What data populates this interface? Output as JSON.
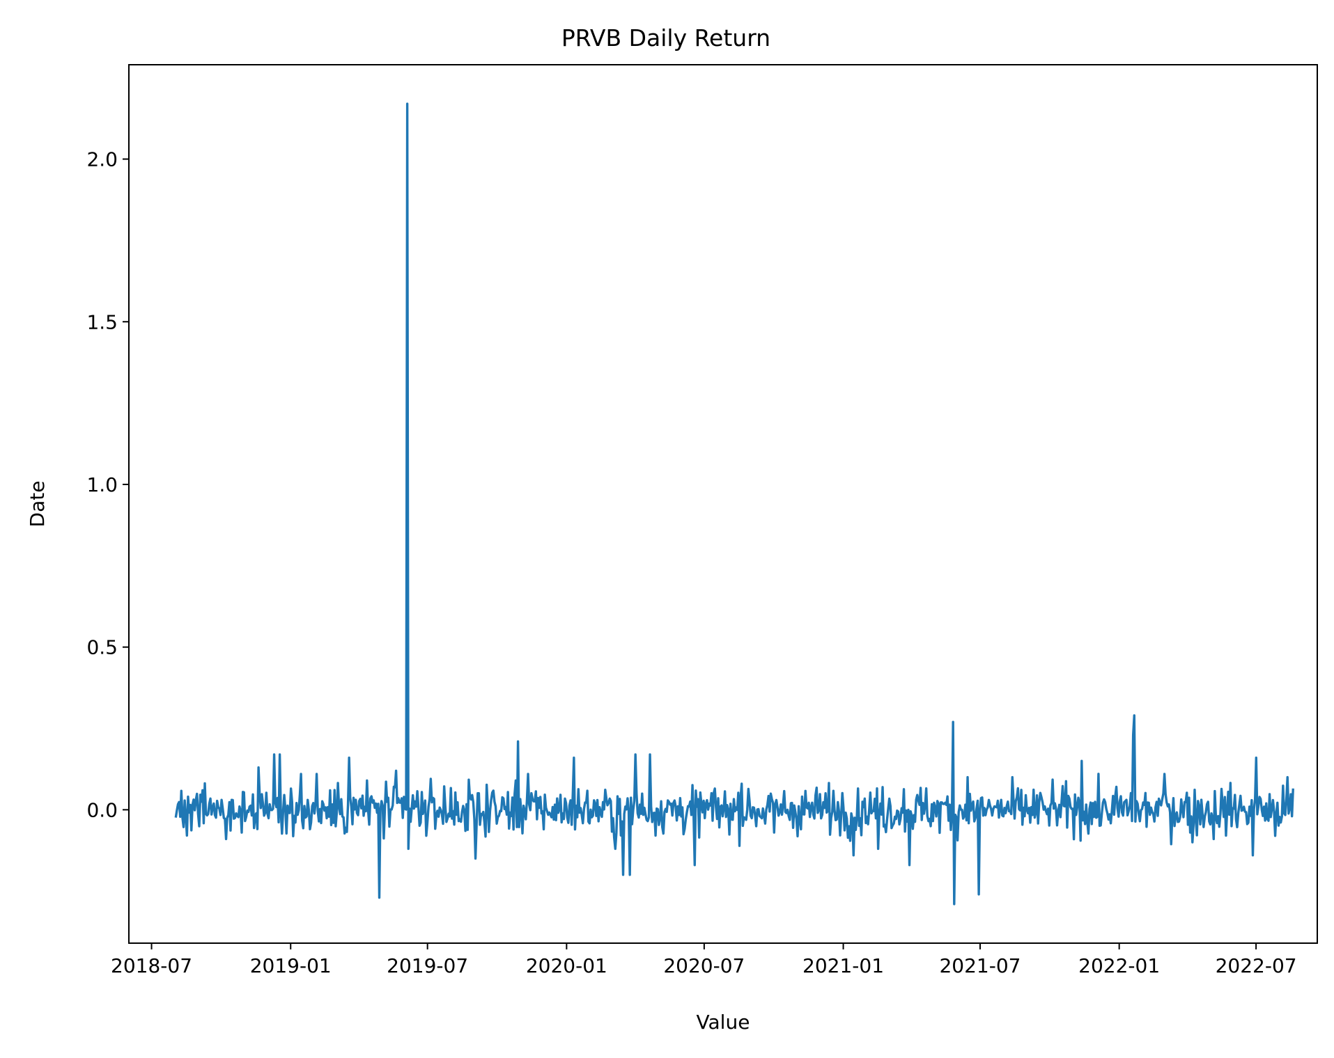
{
  "chart_data": {
    "type": "line",
    "title": "PRVB Daily Return",
    "xlabel": "Value",
    "ylabel": "Date",
    "x_type": "date",
    "xlim": [
      "2018-06-01",
      "2022-09-20"
    ],
    "ylim": [
      -0.41,
      2.29
    ],
    "x_ticks": [
      "2018-07",
      "2019-01",
      "2019-07",
      "2020-01",
      "2020-07",
      "2021-01",
      "2021-07",
      "2022-01",
      "2022-07"
    ],
    "y_ticks": [
      0.0,
      0.5,
      1.0,
      1.5,
      2.0
    ],
    "y_tick_labels": [
      "0.0",
      "0.5",
      "1.0",
      "1.5",
      "2.0"
    ],
    "grid": false,
    "line_color": "#1f77b4",
    "series": [
      {
        "name": "PRVB Daily Return",
        "x_start": "2018-08-02",
        "x_end": "2022-08-19",
        "points": 1000,
        "baseline_noise_sd": 0.035,
        "spikes": [
          {
            "x": "2018-09-06",
            "y": 0.06
          },
          {
            "x": "2018-10-08",
            "y": -0.09
          },
          {
            "x": "2018-11-20",
            "y": 0.13
          },
          {
            "x": "2018-12-10",
            "y": 0.17
          },
          {
            "x": "2018-12-18",
            "y": 0.17
          },
          {
            "x": "2019-01-15",
            "y": 0.11
          },
          {
            "x": "2019-02-04",
            "y": 0.11
          },
          {
            "x": "2019-03-20",
            "y": 0.16
          },
          {
            "x": "2019-04-12",
            "y": 0.09
          },
          {
            "x": "2019-04-28",
            "y": -0.27
          },
          {
            "x": "2019-05-20",
            "y": 0.12
          },
          {
            "x": "2019-06-04",
            "y": 2.17
          },
          {
            "x": "2019-06-06",
            "y": -0.12
          },
          {
            "x": "2019-09-03",
            "y": -0.15
          },
          {
            "x": "2019-09-23",
            "y": 0.03
          },
          {
            "x": "2019-10-28",
            "y": 0.21
          },
          {
            "x": "2019-11-11",
            "y": 0.11
          },
          {
            "x": "2020-01-10",
            "y": 0.16
          },
          {
            "x": "2020-03-06",
            "y": -0.12
          },
          {
            "x": "2020-03-16",
            "y": -0.2
          },
          {
            "x": "2020-03-24",
            "y": -0.2
          },
          {
            "x": "2020-04-01",
            "y": 0.17
          },
          {
            "x": "2020-04-20",
            "y": 0.17
          },
          {
            "x": "2020-06-19",
            "y": -0.17
          },
          {
            "x": "2020-08-20",
            "y": 0.08
          },
          {
            "x": "2020-10-01",
            "y": -0.07
          },
          {
            "x": "2021-01-15",
            "y": -0.14
          },
          {
            "x": "2021-02-16",
            "y": -0.12
          },
          {
            "x": "2021-03-29",
            "y": -0.17
          },
          {
            "x": "2021-05-26",
            "y": 0.27
          },
          {
            "x": "2021-05-28",
            "y": -0.29
          },
          {
            "x": "2021-06-14",
            "y": 0.1
          },
          {
            "x": "2021-06-30",
            "y": -0.26
          },
          {
            "x": "2021-11-12",
            "y": 0.15
          },
          {
            "x": "2022-01-19",
            "y": 0.23
          },
          {
            "x": "2022-01-21",
            "y": 0.29
          },
          {
            "x": "2022-03-02",
            "y": 0.11
          },
          {
            "x": "2022-04-08",
            "y": -0.1
          },
          {
            "x": "2022-05-06",
            "y": -0.09
          },
          {
            "x": "2022-06-27",
            "y": -0.14
          },
          {
            "x": "2022-07-01",
            "y": 0.16
          },
          {
            "x": "2022-07-26",
            "y": -0.08
          },
          {
            "x": "2022-08-12",
            "y": 0.1
          }
        ]
      }
    ]
  }
}
